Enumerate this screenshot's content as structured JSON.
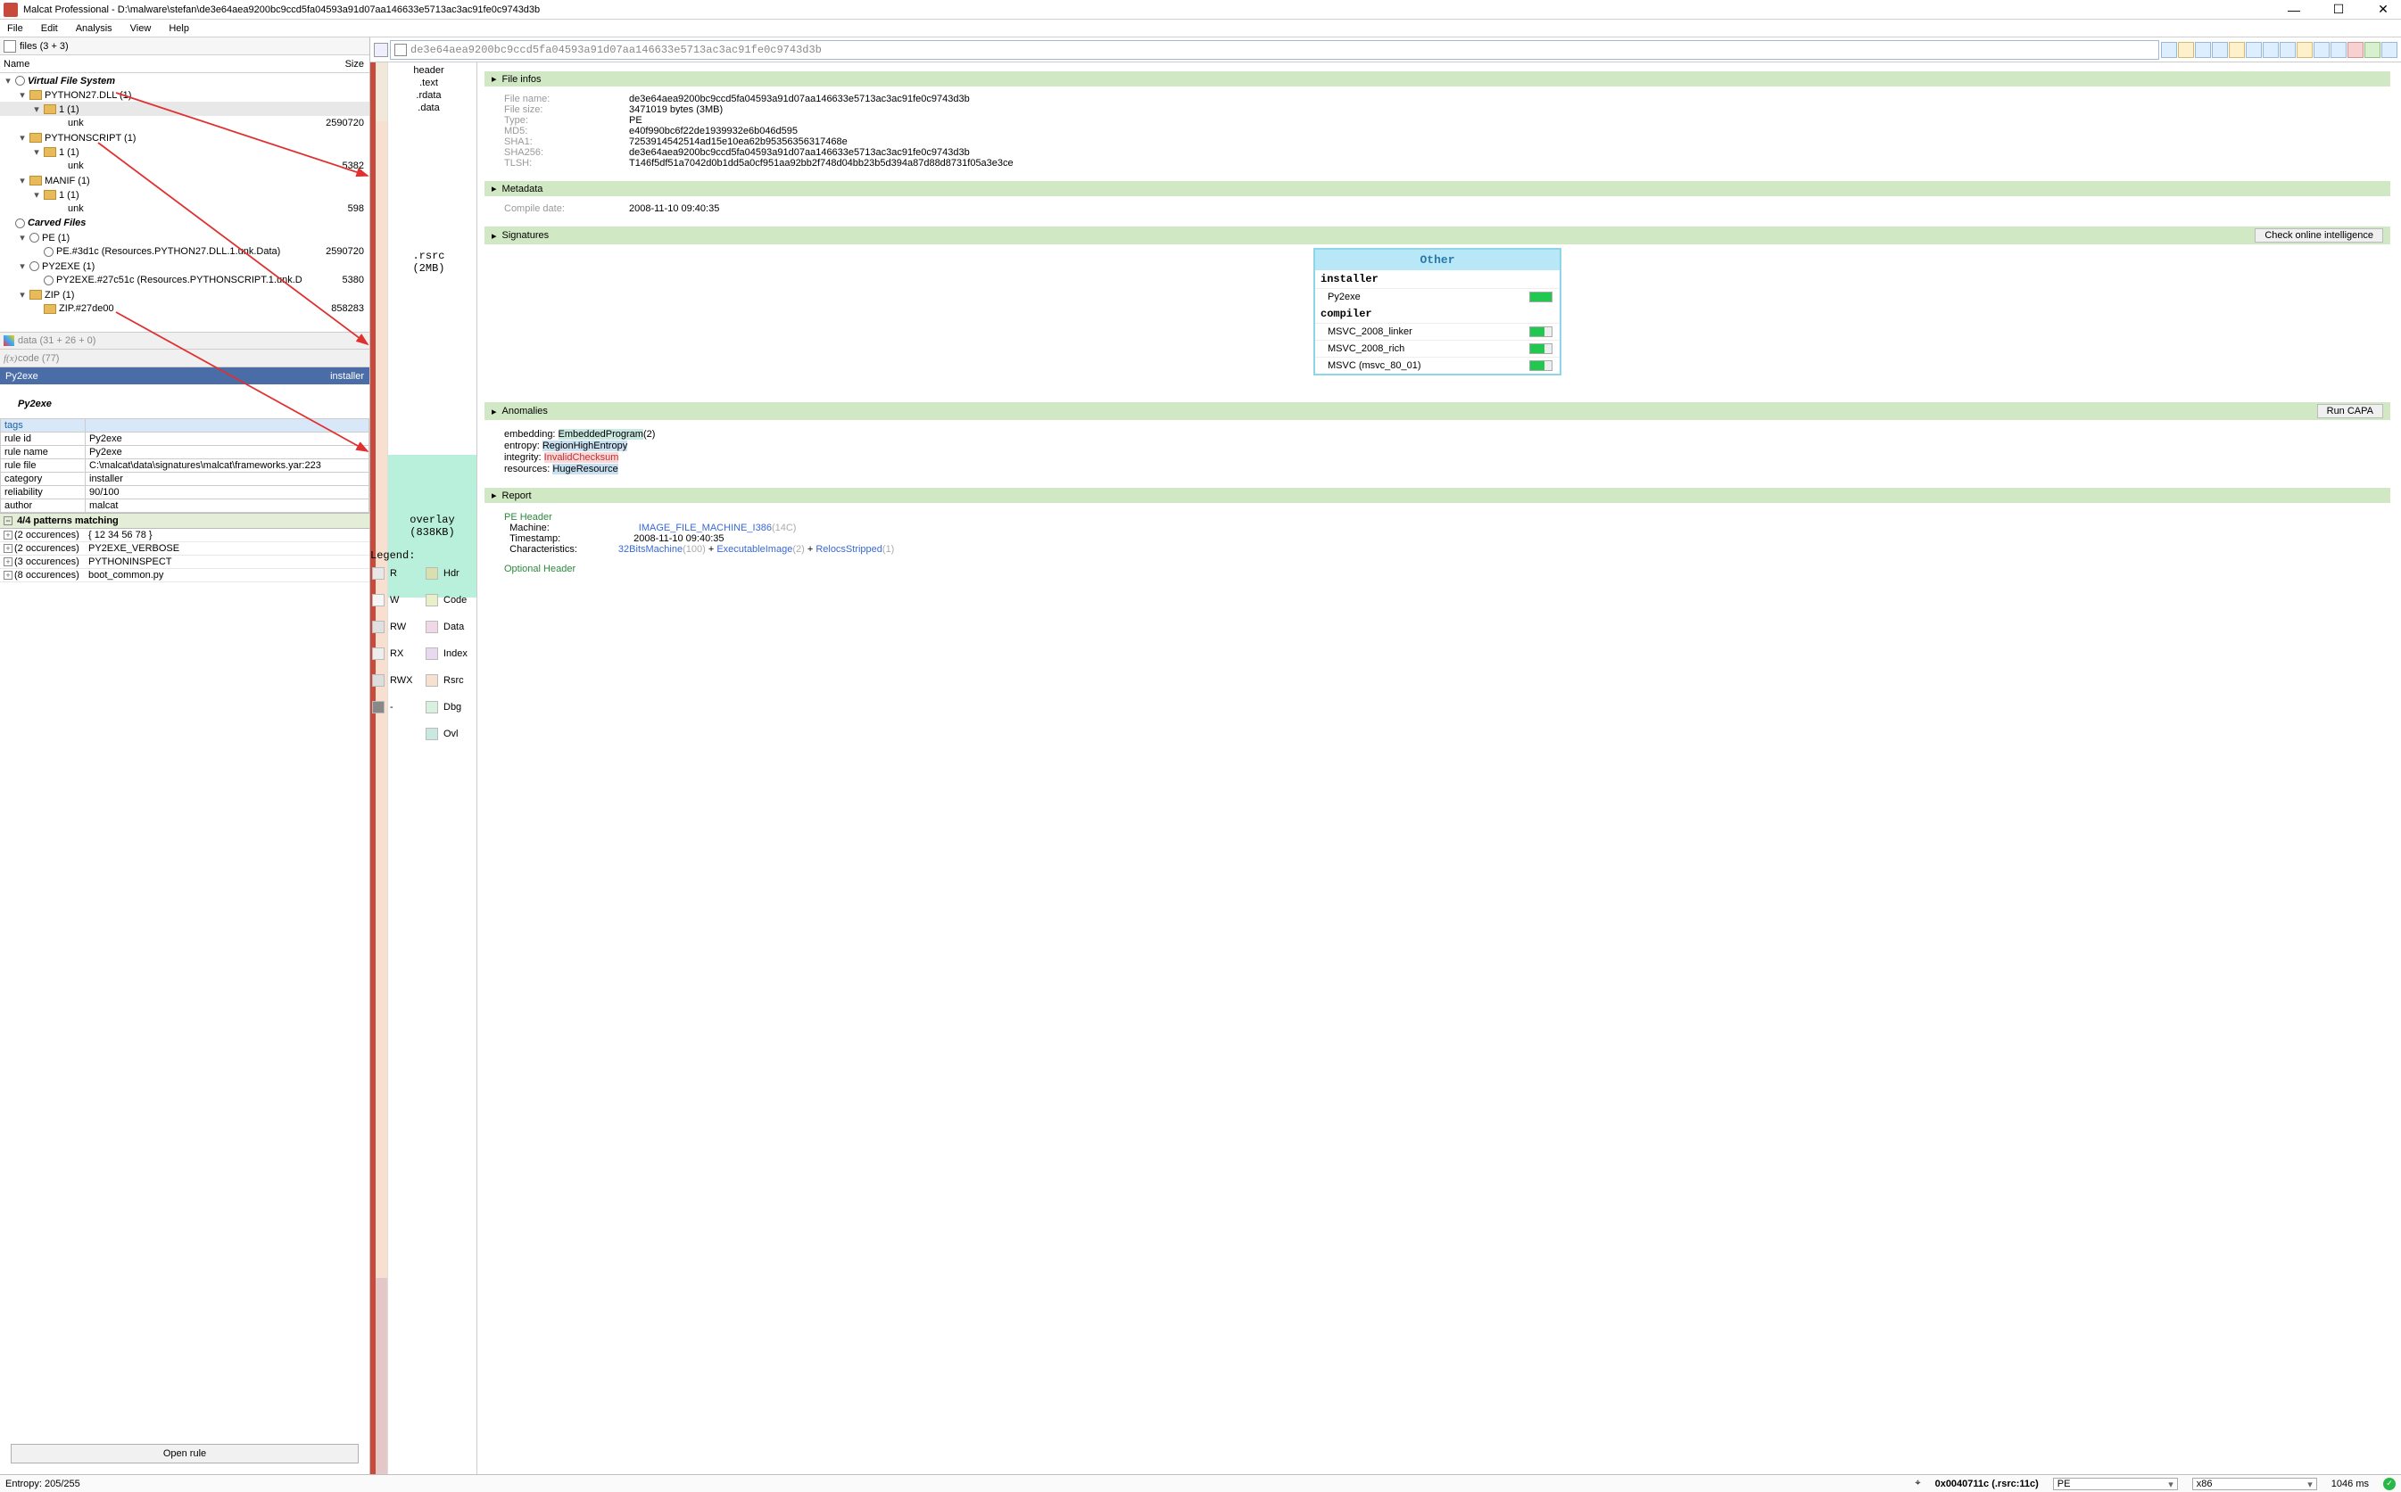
{
  "window": {
    "title": "Malcat Professional - D:\\malware\\stefan\\de3e64aea9200bc9ccd5fa04593a91d07aa146633e5713ac3ac91fe0c9743d3b"
  },
  "menu": [
    "File",
    "Edit",
    "Analysis",
    "View",
    "Help"
  ],
  "files_tab": "files (3 + 3)",
  "cols": {
    "name": "Name",
    "size": "Size"
  },
  "tree": [
    {
      "lvl": 0,
      "tw": "▾",
      "icon": "gear",
      "label": "Virtual File System",
      "bold": true
    },
    {
      "lvl": 1,
      "tw": "▾",
      "icon": "folder",
      "label": "PYTHON27.DLL (1)"
    },
    {
      "lvl": 2,
      "tw": "▾",
      "icon": "folder",
      "label": "1 (1)",
      "sel": true
    },
    {
      "lvl": 3,
      "tw": "",
      "icon": "",
      "label": "unk",
      "size": "2590720"
    },
    {
      "lvl": 1,
      "tw": "▾",
      "icon": "folder",
      "label": "PYTHONSCRIPT (1)"
    },
    {
      "lvl": 2,
      "tw": "▾",
      "icon": "folder",
      "label": "1 (1)"
    },
    {
      "lvl": 3,
      "tw": "",
      "icon": "",
      "label": "unk",
      "size": "5382"
    },
    {
      "lvl": 1,
      "tw": "▾",
      "icon": "folder",
      "label": "MANIF (1)"
    },
    {
      "lvl": 2,
      "tw": "▾",
      "icon": "folder",
      "label": "1 (1)"
    },
    {
      "lvl": 3,
      "tw": "",
      "icon": "",
      "label": "unk",
      "size": "598"
    },
    {
      "lvl": 0,
      "tw": "",
      "icon": "gear",
      "label": "Carved Files",
      "bold": true
    },
    {
      "lvl": 1,
      "tw": "▾",
      "icon": "gear",
      "label": "PE (1)"
    },
    {
      "lvl": 2,
      "tw": "",
      "icon": "gear",
      "label": "PE.#3d1c (Resources.PYTHON27.DLL.1.unk.Data)",
      "size": "2590720"
    },
    {
      "lvl": 1,
      "tw": "▾",
      "icon": "gear",
      "label": "PY2EXE (1)"
    },
    {
      "lvl": 2,
      "tw": "",
      "icon": "gear",
      "label": "PY2EXE.#27c51c (Resources.PYTHONSCRIPT.1.unk.Data)",
      "size": "5380"
    },
    {
      "lvl": 1,
      "tw": "▾",
      "icon": "folder",
      "label": "ZIP (1)"
    },
    {
      "lvl": 2,
      "tw": "",
      "icon": "folder",
      "label": "ZIP.#27de00",
      "size": "858283"
    }
  ],
  "data_hdr": "data (31 + 26 + 0)",
  "code_hdr": "code (77)",
  "selected": {
    "name": "Py2exe",
    "kind": "installer"
  },
  "detail_title": "Py2exe",
  "tags_label": "tags",
  "tags": [
    {
      "k": "rule id",
      "v": "Py2exe"
    },
    {
      "k": "rule name",
      "v": "Py2exe"
    },
    {
      "k": "rule file",
      "v": "C:\\malcat\\data\\signatures\\malcat\\frameworks.yar:223"
    },
    {
      "k": "category",
      "v": "installer"
    },
    {
      "k": "reliability",
      "v": "90/100"
    },
    {
      "k": "author",
      "v": "malcat"
    }
  ],
  "patterns_hdr": "4/4 patterns matching",
  "patterns": [
    {
      "occ": "(2 occurences)",
      "val": "{ 12 34 56 78 }"
    },
    {
      "occ": "(2 occurences)",
      "val": "PY2EXE_VERBOSE"
    },
    {
      "occ": "(3 occurences)",
      "val": "PYTHONINSPECT"
    },
    {
      "occ": "(8 occurences)",
      "val": "boot_common.py"
    }
  ],
  "open_rule": "Open rule",
  "pathbar": "de3e64aea9200bc9ccd5fa04593a91d07aa146633e5713ac3ac91fe0c9743d3b",
  "segments": {
    "header": "header",
    "text": ".text",
    "rdata": ".rdata",
    "data": ".data",
    "rsrc": ".rsrc",
    "rsrc_sz": "(2MB)",
    "overlay": "overlay",
    "overlay_sz": "(838KB)"
  },
  "legend_label": "Legend:",
  "legend": [
    {
      "l": "R",
      "c": "#e8e8e8"
    },
    {
      "l": "Hdr",
      "c": "#d8e0b0"
    },
    {
      "l": "W",
      "c": "#f6f6f6"
    },
    {
      "l": "Code",
      "c": "#e8f0c8"
    },
    {
      "l": "RW",
      "c": "#e0e0e0"
    },
    {
      "l": "Data",
      "c": "#f0d8e8"
    },
    {
      "l": "RX",
      "c": "#eeeeee"
    },
    {
      "l": "Index",
      "c": "#e8d8f0"
    },
    {
      "l": "RWX",
      "c": "#dddddd"
    },
    {
      "l": "Rsrc",
      "c": "#f8e0d0"
    },
    {
      "l": "-",
      "c": "#888"
    },
    {
      "l": "Dbg",
      "c": "#d8f0e0"
    },
    {
      "l": "",
      "c": ""
    },
    {
      "l": "Ovl",
      "c": "#c8e8e0"
    }
  ],
  "sections": {
    "file_infos": "File infos",
    "metadata": "Metadata",
    "signatures": "Signatures",
    "anomalies": "Anomalies",
    "report": "Report",
    "check_online": "Check online intelligence",
    "run_capa": "Run CAPA"
  },
  "file_infos": [
    {
      "k": "File name:",
      "v": "de3e64aea9200bc9ccd5fa04593a91d07aa146633e5713ac3ac91fe0c9743d3b"
    },
    {
      "k": "File size:",
      "v": "3471019 bytes (3MB)"
    },
    {
      "k": "Type:",
      "v": "PE"
    },
    {
      "k": "MD5:",
      "v": "e40f990bc6f22de1939932e6b046d595"
    },
    {
      "k": "SHA1:",
      "v": "7253914542514ad15e10ea62b95356356317468e"
    },
    {
      "k": "SHA256:",
      "v": "de3e64aea9200bc9ccd5fa04593a91d07aa146633e5713ac3ac91fe0c9743d3b"
    },
    {
      "k": "TLSH:",
      "v": "T146f5df51a7042d0b1dd5a0cf951aa92bb2f748d04bb23b5d394a87d88d8731f05a3e3ce"
    }
  ],
  "metadata": [
    {
      "k": "Compile date:",
      "v": "2008-11-10 09:40:35"
    }
  ],
  "sigbox": {
    "title": "Other",
    "groups": [
      {
        "name": "installer",
        "items": [
          {
            "n": "Py2exe",
            "fill": 100
          }
        ]
      },
      {
        "name": "compiler",
        "items": [
          {
            "n": "MSVC_2008_linker",
            "fill": 70
          },
          {
            "n": "MSVC_2008_rich",
            "fill": 70
          },
          {
            "n": "MSVC (msvc_80_01)",
            "fill": 70
          }
        ]
      }
    ]
  },
  "anomalies": [
    {
      "k": "embedding:",
      "tag": "EmbeddedProgram",
      "cls": "tag-teal",
      "n": "(2)"
    },
    {
      "k": "entropy:",
      "tag": "RegionHighEntropy",
      "cls": "tag-blue",
      "n": ""
    },
    {
      "k": "integrity:",
      "tag": "InvalidChecksum",
      "cls": "tag-pink",
      "n": ""
    },
    {
      "k": "resources:",
      "tag": "HugeResource",
      "cls": "tag-blue",
      "n": ""
    }
  ],
  "report": {
    "pe_header": "PE Header",
    "machine_k": "Machine:",
    "machine_v": "IMAGE_FILE_MACHINE_I386",
    "machine_n": "(14C)",
    "ts_k": "Timestamp:",
    "ts_v": "2008-11-10 09:40:35",
    "char_k": "Characteristics:",
    "char1": "32BitsMachine",
    "char1n": "(100)",
    "plus": " + ",
    "char2": "ExecutableImage",
    "char2n": "(2)",
    "char3": "RelocsStripped",
    "char3n": "(1)",
    "opt": "Optional Header"
  },
  "status": {
    "entropy": "Entropy: 205/255",
    "addr": "0x0040711c (.rsrc:11c)",
    "fmt": "PE",
    "arch": "x86",
    "time": "1046 ms"
  }
}
